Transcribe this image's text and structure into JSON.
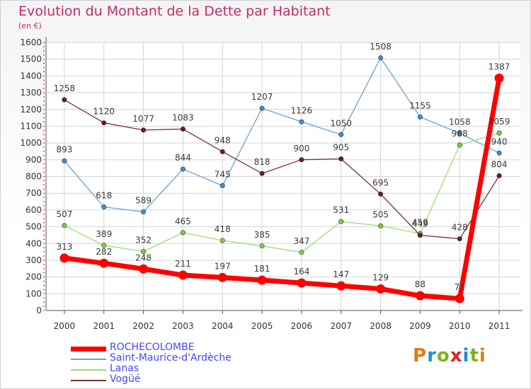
{
  "title": "Evolution du Montant de la Dette par Habitant",
  "unit": "(en €)",
  "logo": {
    "text": "Proxiti",
    "letter_colors": [
      "#e07b19",
      "#1d8fd0",
      "#7cb517",
      "#e02020",
      "#1d8fd0",
      "#7cb517",
      "#e07b19"
    ]
  },
  "chart_data": {
    "type": "line",
    "categories": [
      "2000",
      "2001",
      "2002",
      "2003",
      "2004",
      "2005",
      "2006",
      "2007",
      "2008",
      "2009",
      "2010",
      "2011"
    ],
    "ylim": [
      0,
      1600
    ],
    "yticks": [
      0,
      100,
      200,
      300,
      400,
      500,
      600,
      700,
      800,
      900,
      1000,
      1100,
      1200,
      1300,
      1400,
      1500,
      1600
    ],
    "grid": true,
    "legend_position": "bottom-left",
    "series": [
      {
        "name": "ROCHECOLOMBE",
        "color": "#ff0000",
        "highlight": true,
        "values": [
          313,
          282,
          248,
          211,
          197,
          181,
          164,
          147,
          129,
          88,
          71,
          1387
        ]
      },
      {
        "name": "Saint-Maurice-d'Ardèche",
        "color": "#6fa0d0",
        "marker_color": "#3d8ed8",
        "values": [
          893,
          618,
          589,
          844,
          745,
          1207,
          1126,
          1050,
          1508,
          1155,
          1058,
          940
        ]
      },
      {
        "name": "Lanas",
        "color": "#a0db78",
        "marker_color": "#7ed044",
        "values": [
          507,
          389,
          352,
          465,
          418,
          385,
          347,
          531,
          505,
          459,
          988,
          1059
        ]
      },
      {
        "name": "Vogüé",
        "color": "#7a3232",
        "marker_color": "#6a1c1c",
        "values": [
          1258,
          1120,
          1077,
          1083,
          948,
          818,
          900,
          905,
          695,
          449,
          428,
          804
        ]
      }
    ]
  }
}
